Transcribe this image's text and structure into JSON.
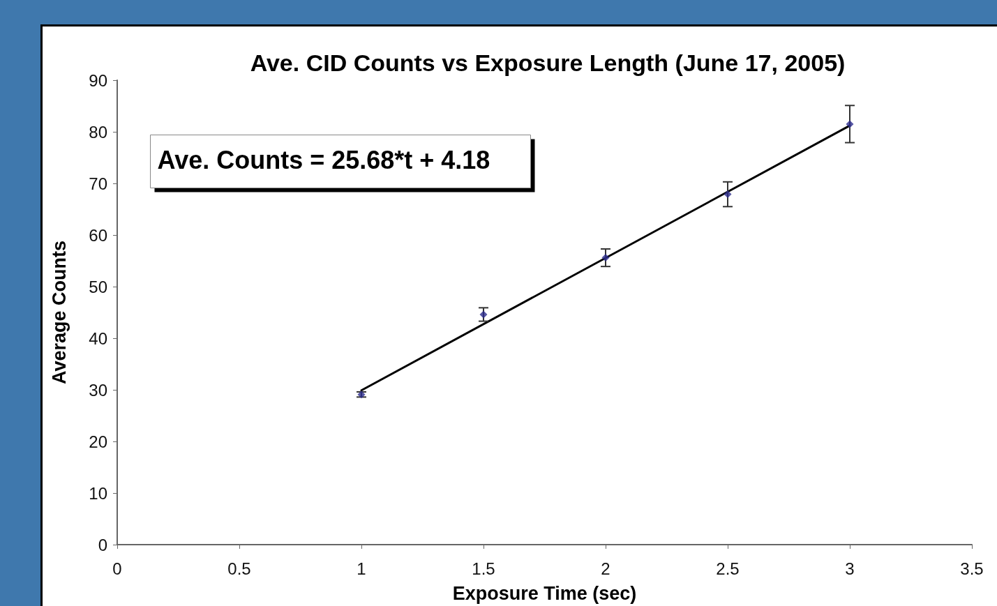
{
  "chart_data": {
    "type": "scatter",
    "title": "Ave. CID Counts vs Exposure Length (June 17, 2005)",
    "xlabel": "Exposure Time (sec)",
    "ylabel": "Average Counts",
    "annotations": [
      "Ave. Counts = 25.68*t + 4.18"
    ],
    "series": [
      {
        "color": "#2b2b8c",
        "x": [
          1,
          1.5,
          2,
          2.5,
          3
        ],
        "values": [
          29.1,
          44.6,
          55.6,
          67.9,
          81.5
        ],
        "errors": [
          0.5,
          1.3,
          1.7,
          2.4,
          3.6
        ],
        "marker": "diamond"
      },
      {
        "type": "line",
        "color": "#000000",
        "x": [
          1,
          3
        ],
        "values": [
          29.9,
          81.2
        ],
        "marker": "none",
        "line_style": "solid"
      }
    ],
    "xlim": [
      0,
      3.5
    ],
    "xticks": [
      0,
      0.5,
      1,
      1.5,
      2,
      2.5,
      3,
      3.5
    ],
    "ylim": [
      0,
      90
    ],
    "yticks": [
      0,
      10,
      20,
      30,
      40,
      50,
      60,
      70,
      80,
      90
    ],
    "grid": false
  }
}
